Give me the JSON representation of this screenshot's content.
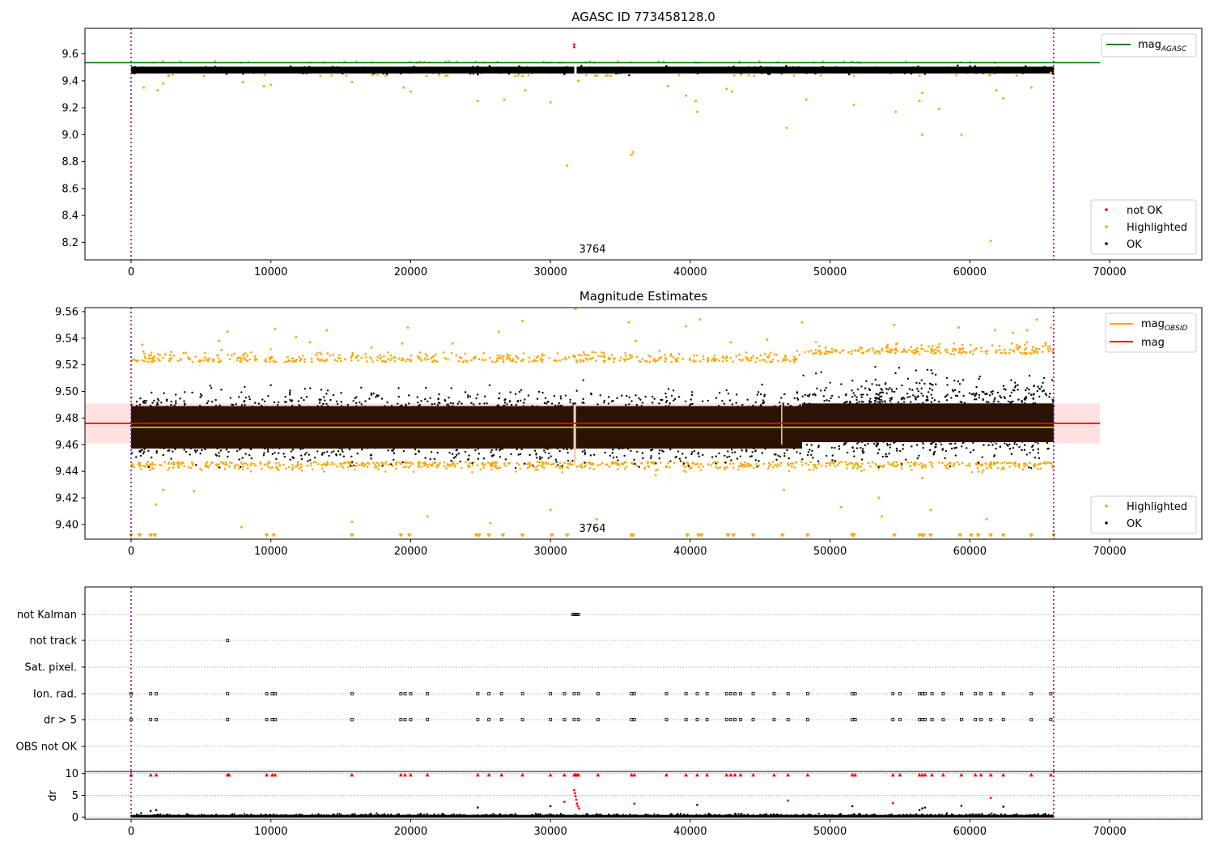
{
  "chart_data": [
    {
      "type": "scatter",
      "title": "AGASC ID 773458128.0",
      "xlabel": "",
      "ylabel": "",
      "xlim": [
        -3300,
        76600
      ],
      "ylim": [
        8.07,
        9.79
      ],
      "xticks": [
        "0",
        "10000",
        "20000",
        "30000",
        "40000",
        "50000",
        "60000",
        "70000"
      ],
      "yticks": [
        "9.6",
        "9.4",
        "9.2",
        "9.0",
        "8.8",
        "8.6",
        "8.4",
        "8.2"
      ],
      "annotation": "3764",
      "vlines": [
        0,
        66000
      ],
      "hline": {
        "name": "mag_AGASC",
        "label_main": "mag",
        "label_sub": "AGASC",
        "y": 9.535,
        "x_range": [
          -3300,
          69300
        ],
        "color": "#008000"
      },
      "band": {
        "low": 9.44,
        "high": 9.52
      },
      "series": [
        {
          "name": "not OK",
          "color": "#ff0000",
          "points": [
            [
              31700,
              9.67
            ],
            [
              31700,
              9.65
            ]
          ]
        },
        {
          "name": "Highlighted",
          "color": "#ffa500",
          "points": [
            [
              900,
              9.35
            ],
            [
              1900,
              9.33
            ],
            [
              2300,
              9.38
            ],
            [
              8000,
              9.39
            ],
            [
              9500,
              9.36
            ],
            [
              10000,
              9.37
            ],
            [
              15800,
              9.39
            ],
            [
              19500,
              9.35
            ],
            [
              20000,
              9.32
            ],
            [
              24800,
              9.25
            ],
            [
              26700,
              9.26
            ],
            [
              28200,
              9.33
            ],
            [
              30000,
              9.24
            ],
            [
              31200,
              8.77
            ],
            [
              32000,
              9.4
            ],
            [
              35800,
              8.85
            ],
            [
              35900,
              8.87
            ],
            [
              38400,
              9.36
            ],
            [
              39700,
              9.29
            ],
            [
              40400,
              9.25
            ],
            [
              40500,
              9.17
            ],
            [
              42600,
              9.34
            ],
            [
              43000,
              9.32
            ],
            [
              46900,
              9.05
            ],
            [
              48300,
              9.26
            ],
            [
              51700,
              9.22
            ],
            [
              54700,
              9.17
            ],
            [
              56400,
              9.25
            ],
            [
              56600,
              9.31
            ],
            [
              56600,
              9.0
            ],
            [
              57800,
              9.19
            ],
            [
              59400,
              9.0
            ],
            [
              61500,
              8.21
            ],
            [
              61900,
              9.33
            ],
            [
              62400,
              9.27
            ],
            [
              64400,
              9.35
            ],
            [
              65800,
              9.46
            ]
          ]
        },
        {
          "name": "OK",
          "color": "#000000",
          "points": []
        }
      ],
      "legend": {
        "location": "lower right",
        "entries": [
          "not OK",
          "Highlighted",
          "OK"
        ]
      }
    },
    {
      "type": "scatter",
      "title": "Magnitude Estimates",
      "xlabel": "",
      "ylabel": "",
      "xlim": [
        -3300,
        76600
      ],
      "ylim": [
        9.389,
        9.563
      ],
      "xticks": [
        "0",
        "10000",
        "20000",
        "30000",
        "40000",
        "50000",
        "60000",
        "70000"
      ],
      "yticks": [
        "9.56",
        "9.54",
        "9.52",
        "9.50",
        "9.48",
        "9.46",
        "9.44",
        "9.42",
        "9.40"
      ],
      "annotation": "3764",
      "vlines": [
        0,
        66000
      ],
      "lines": [
        {
          "name": "mag_OBSID",
          "label_main": "mag",
          "label_sub": "OBSID",
          "y": 9.473,
          "color": "#ffa500",
          "x_range": [
            0,
            66000
          ]
        },
        {
          "name": "mag",
          "label_main": "mag",
          "y": 9.476,
          "color": "#ff0000",
          "x_range": [
            -3300,
            69300
          ]
        }
      ],
      "shaded_band": {
        "low": 9.461,
        "high": 9.491,
        "color": "#ffcccc",
        "x_range": [
          -3300,
          69300
        ]
      },
      "dense_band": {
        "low": 9.457,
        "high": 9.489,
        "color": "#2a1205"
      },
      "series": [
        {
          "name": "Highlighted",
          "color": "#ffa500",
          "points": [
            [
              800,
              9.535
            ],
            [
              1400,
              9.527
            ],
            [
              1800,
              9.415
            ],
            [
              2300,
              9.426
            ],
            [
              4500,
              9.425
            ],
            [
              6300,
              9.538
            ],
            [
              6900,
              9.545
            ],
            [
              7900,
              9.398
            ],
            [
              10300,
              9.547
            ],
            [
              11800,
              9.541
            ],
            [
              12800,
              9.537
            ],
            [
              14000,
              9.546
            ],
            [
              15800,
              9.402
            ],
            [
              17200,
              9.533
            ],
            [
              19400,
              9.536
            ],
            [
              19800,
              9.548
            ],
            [
              21200,
              9.406
            ],
            [
              23000,
              9.536
            ],
            [
              25700,
              9.401
            ],
            [
              26300,
              9.545
            ],
            [
              28000,
              9.553
            ],
            [
              30000,
              9.411
            ],
            [
              31800,
              9.562
            ],
            [
              33300,
              9.404
            ],
            [
              35600,
              9.552
            ],
            [
              36100,
              9.538
            ],
            [
              39700,
              9.549
            ],
            [
              40700,
              9.554
            ],
            [
              42900,
              9.537
            ],
            [
              45500,
              9.539
            ],
            [
              46700,
              9.426
            ],
            [
              48000,
              9.552
            ],
            [
              50800,
              9.413
            ],
            [
              51600,
              9.393
            ],
            [
              53500,
              9.42
            ],
            [
              53700,
              9.406
            ],
            [
              54600,
              9.55
            ],
            [
              56600,
              9.435
            ],
            [
              57200,
              9.411
            ],
            [
              59200,
              9.548
            ],
            [
              61200,
              9.404
            ],
            [
              61800,
              9.546
            ],
            [
              63100,
              9.544
            ],
            [
              64100,
              9.546
            ],
            [
              64800,
              9.554
            ],
            [
              65800,
              9.548
            ]
          ]
        },
        {
          "name": "OK",
          "color": "#000000",
          "points": []
        }
      ],
      "below_markers_x": [
        0,
        600,
        1400,
        1700,
        9700,
        10200,
        15800,
        19300,
        19900,
        24700,
        24900,
        25600,
        26600,
        28000,
        30100,
        31200,
        35800,
        35900,
        39800,
        40600,
        40800,
        42700,
        43100,
        44500,
        46600,
        48400,
        51600,
        51700,
        54600,
        56400,
        56600,
        56700,
        57200,
        59300,
        60100,
        60600,
        61500,
        62400,
        64400,
        66000
      ],
      "legend": {
        "location": "lower right",
        "entries": [
          "Highlighted",
          "OK"
        ]
      },
      "legend_top": {
        "location": "upper right",
        "entries": [
          "mag_OBSID",
          "mag"
        ]
      }
    },
    {
      "type": "scatter",
      "title": "",
      "xlabel": "",
      "ylabel": "",
      "xlim": [
        -3300,
        76600
      ],
      "categories": [
        "not Kalman",
        "not track",
        "Sat. pixel.",
        "Ion. rad.",
        "dr > 5",
        "OBS not OK"
      ],
      "flag_points": {
        "not Kalman": [
          31600,
          31700,
          31800,
          31900,
          32000
        ],
        "not track": [
          6900
        ],
        "Sat. pixel.": [],
        "Ion. rad.": [
          0,
          1400,
          1800,
          6900,
          9700,
          10100,
          10300,
          15800,
          19300,
          19600,
          20000,
          21200,
          24800,
          25600,
          26500,
          28000,
          30000,
          31000,
          31700,
          32000,
          33400,
          35800,
          36000,
          38300,
          39700,
          40500,
          41200,
          42600,
          42900,
          43200,
          43600,
          44500,
          46000,
          47000,
          48400,
          51600,
          51800,
          54500,
          55000,
          56400,
          56600,
          56800,
          57300,
          58100,
          59400,
          60400,
          60800,
          61500,
          62400,
          64400,
          65800
        ],
        "dr > 5": [
          0,
          1400,
          1800,
          6900,
          9700,
          10100,
          10300,
          15800,
          19300,
          19600,
          20000,
          21200,
          24800,
          25600,
          26500,
          28000,
          30000,
          31000,
          31700,
          32000,
          33400,
          35800,
          36000,
          38300,
          39700,
          40500,
          41200,
          42600,
          42900,
          43200,
          43600,
          44500,
          46000,
          47000,
          48400,
          51600,
          51800,
          54500,
          55000,
          56400,
          56600,
          56800,
          57300,
          58100,
          59400,
          60400,
          60800,
          61500,
          62400,
          64400,
          65800
        ],
        "OBS not OK": []
      },
      "vlines": [
        0,
        66000
      ]
    },
    {
      "type": "scatter",
      "title": "",
      "xlabel": "",
      "ylabel": "dr",
      "xlim": [
        -3300,
        76600
      ],
      "ylim": [
        -0.5,
        10.5
      ],
      "xticks": [
        "0",
        "10000",
        "20000",
        "30000",
        "40000",
        "50000",
        "60000",
        "70000"
      ],
      "yticks": [
        "10",
        "5",
        "0"
      ],
      "clipped_x": [
        0,
        1400,
        1800,
        6900,
        7000,
        9700,
        10100,
        10300,
        15800,
        19300,
        19600,
        20000,
        21200,
        24800,
        25600,
        26500,
        28000,
        30000,
        31000,
        31700,
        31800,
        31900,
        32000,
        33400,
        35800,
        36000,
        38300,
        39700,
        40500,
        41200,
        42600,
        42900,
        43200,
        43600,
        44500,
        46000,
        47000,
        48400,
        51600,
        51800,
        54500,
        55000,
        56400,
        56600,
        56800,
        57300,
        58100,
        59400,
        60400,
        60800,
        61500,
        62400,
        64400,
        65800
      ],
      "series": [
        {
          "name": "not OK",
          "color": "#ff0000",
          "points": [
            [
              31000,
              3.5
            ],
            [
              31700,
              6.2
            ],
            [
              31750,
              5.5
            ],
            [
              31800,
              4.8
            ],
            [
              31850,
              4.0
            ],
            [
              31900,
              3.1
            ],
            [
              31950,
              2.5
            ],
            [
              32050,
              2.0
            ],
            [
              36000,
              3.1
            ],
            [
              47000,
              3.8
            ],
            [
              54500,
              3.2
            ],
            [
              61500,
              4.4
            ]
          ]
        },
        {
          "name": "OK",
          "color": "#000000",
          "points": [
            [
              1400,
              1.4
            ],
            [
              1800,
              1.6
            ],
            [
              24800,
              2.2
            ],
            [
              30000,
              2.5
            ],
            [
              40500,
              2.8
            ],
            [
              51600,
              2.5
            ],
            [
              56400,
              1.6
            ],
            [
              56600,
              2.0
            ],
            [
              56800,
              2.2
            ],
            [
              59400,
              2.6
            ],
            [
              62400,
              2.4
            ]
          ]
        }
      ],
      "vlines": [
        0,
        66000
      ]
    }
  ]
}
